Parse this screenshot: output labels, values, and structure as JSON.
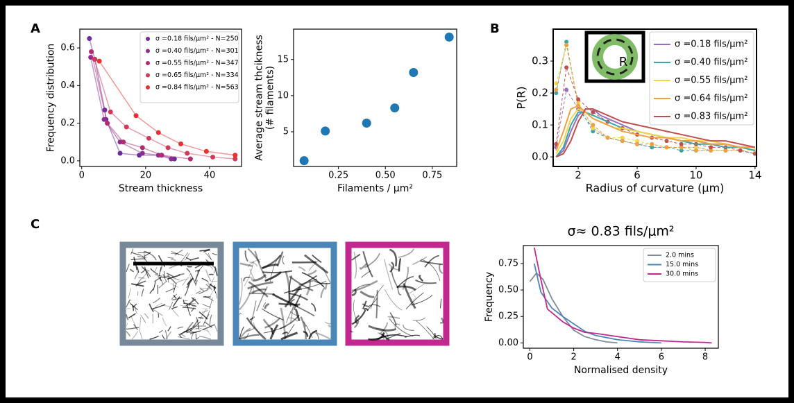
{
  "panel_labels": [
    "A",
    "B",
    "C"
  ],
  "inset_label": "R",
  "chart_data": [
    {
      "type": "line",
      "markers": true,
      "xlabel": "Stream thickness",
      "ylabel": [
        "Frequency distribution"
      ],
      "xlim": [
        -0.6,
        50
      ],
      "xticks": [
        0,
        20,
        40
      ],
      "ylim": [
        -0.03,
        0.7
      ],
      "yticks": [
        {
          "value": 0,
          "label": "0.0"
        },
        0.2,
        0.4,
        0.6
      ],
      "legend": "upper right",
      "series": [
        {
          "name": "σ =0.18 fils/μm² - N=250",
          "color": "#6a2ca0",
          "x": [
            2.4,
            4.1,
            7.2,
            7.6,
            12,
            18,
            25,
            29
          ],
          "values": [
            0.65,
            0.54,
            0.27,
            0.22,
            0.04,
            0.03,
            0.03,
            0.01
          ]
        },
        {
          "name": "σ =0.40 fils/μm² - N=301",
          "color": "#8e2c90",
          "x": [
            2.8,
            7,
            12,
            19,
            24,
            28
          ],
          "values": [
            0.55,
            0.22,
            0.1,
            0.04,
            0.03,
            0.01
          ]
        },
        {
          "name": "σ =0.55 fils/μm² - N=347",
          "color": "#b22b70",
          "x": [
            3,
            8,
            13,
            19,
            25,
            34
          ],
          "values": [
            0.58,
            0.2,
            0.1,
            0.07,
            0.03,
            0.01
          ]
        },
        {
          "name": "σ =0.65 fils/μm² - N=334",
          "color": "#d13a5a",
          "x": [
            4,
            9,
            14,
            21,
            27,
            33,
            41,
            48
          ],
          "values": [
            0.54,
            0.26,
            0.18,
            0.12,
            0.07,
            0.04,
            0.02,
            0.01
          ]
        },
        {
          "name": "σ =0.84 fils/μm² - N=563",
          "color": "#e8302e",
          "x": [
            5.5,
            17,
            24,
            31,
            39,
            48
          ],
          "values": [
            0.53,
            0.24,
            0.15,
            0.09,
            0.05,
            0.03
          ]
        }
      ]
    },
    {
      "type": "scatter",
      "xlabel": "Filaments / μm²",
      "ylabel": [
        "Average stream thcikness",
        "(# filaments)"
      ],
      "xlim": [
        0.011,
        0.88
      ],
      "xticks": [
        {
          "value": 0.25,
          "label": "0.25"
        },
        {
          "value": 0.5,
          "label": "0.50"
        },
        {
          "value": 0.75,
          "label": "0.75"
        }
      ],
      "ylim": [
        0.2,
        19.2
      ],
      "yticks": [
        5,
        10,
        15
      ],
      "series": [
        {
          "color": "#1f77b4",
          "x": [
            0.067,
            0.18,
            0.4,
            0.55,
            0.65,
            0.84
          ],
          "values": [
            1.0,
            5.1,
            6.2,
            8.3,
            13.2,
            18.1
          ]
        }
      ]
    },
    {
      "type": "line",
      "xlabel": "Radius of curvature (μm)",
      "ylabel": [
        "P(R)"
      ],
      "xlim": [
        0.3,
        14.1
      ],
      "xticks": [
        2,
        6,
        10,
        14
      ],
      "ylim": [
        -0.03,
        0.4
      ],
      "yticks": [
        {
          "value": 0,
          "label": "0.0"
        },
        0.1,
        0.2,
        0.3
      ],
      "legend": "upper right",
      "series": [
        {
          "name": "σ =0.18 fils/μm²",
          "color": "#9a6fc0",
          "x": [
            0.5,
            1,
            1.5,
            2,
            2.5,
            3,
            3.5,
            4,
            4.5,
            5,
            6,
            7,
            8,
            9,
            10,
            11,
            12,
            13,
            14
          ],
          "values": [
            0.0,
            0.02,
            0.08,
            0.13,
            0.15,
            0.15,
            0.13,
            0.12,
            0.11,
            0.1,
            0.08,
            0.07,
            0.06,
            0.05,
            0.05,
            0.04,
            0.04,
            0.03,
            0.03
          ]
        },
        {
          "name": "σ =0.40 fils/μm²",
          "color": "#3aa6a6",
          "x": [
            0.5,
            1,
            1.5,
            2,
            2.5,
            3,
            3.5,
            4,
            4.5,
            5,
            6,
            7,
            8,
            9,
            10,
            11,
            12,
            13,
            14
          ],
          "values": [
            0.0,
            0.03,
            0.1,
            0.14,
            0.14,
            0.13,
            0.12,
            0.11,
            0.1,
            0.09,
            0.08,
            0.07,
            0.06,
            0.05,
            0.04,
            0.04,
            0.03,
            0.03,
            0.02
          ]
        },
        {
          "name": "σ =0.55 fils/μm²",
          "color": "#f2d64b",
          "x": [
            0.5,
            1,
            1.5,
            2,
            2.5,
            3,
            3.5,
            4,
            4.5,
            5,
            6,
            7,
            8,
            9,
            10,
            11,
            12,
            13,
            14
          ],
          "values": [
            0.01,
            0.05,
            0.12,
            0.15,
            0.14,
            0.12,
            0.11,
            0.1,
            0.09,
            0.09,
            0.08,
            0.07,
            0.06,
            0.06,
            0.05,
            0.05,
            0.04,
            0.03,
            0.03
          ]
        },
        {
          "name": "σ =0.64 fils/μm²",
          "color": "#f0a040",
          "x": [
            0.5,
            1,
            1.5,
            2,
            2.5,
            3,
            3.5,
            4,
            4.5,
            5,
            6,
            7,
            8,
            9,
            10,
            11,
            12,
            13,
            14
          ],
          "values": [
            0.02,
            0.08,
            0.15,
            0.16,
            0.14,
            0.12,
            0.11,
            0.1,
            0.09,
            0.08,
            0.07,
            0.06,
            0.06,
            0.05,
            0.05,
            0.04,
            0.04,
            0.03,
            0.03
          ]
        },
        {
          "name": "σ =0.83 fils/μm²",
          "color": "#c0504d",
          "x": [
            0.5,
            1,
            1.5,
            2,
            2.5,
            3,
            3.5,
            4,
            4.5,
            5,
            6,
            7,
            8,
            9,
            10,
            11,
            12,
            13,
            14
          ],
          "values": [
            0.0,
            0.01,
            0.05,
            0.11,
            0.15,
            0.15,
            0.14,
            0.13,
            0.12,
            0.11,
            0.1,
            0.09,
            0.08,
            0.07,
            0.06,
            0.05,
            0.05,
            0.04,
            0.03
          ]
        }
      ],
      "marker_series": [
        {
          "color": "#9a6fc0",
          "x": [
            0.5,
            1.2,
            2,
            3,
            4,
            5,
            6,
            7,
            8,
            9,
            10,
            11,
            12,
            13,
            14
          ],
          "values": [
            0.03,
            0.21,
            0.15,
            0.09,
            0.06,
            0.05,
            0.04,
            0.03,
            0.03,
            0.03,
            0.03,
            0.02,
            0.02,
            0.02,
            0.01
          ]
        },
        {
          "color": "#3aa6a6",
          "x": [
            0.5,
            1.2,
            2,
            3,
            4,
            5,
            6,
            7,
            8,
            9,
            10,
            11,
            12,
            13,
            14
          ],
          "values": [
            0.2,
            0.36,
            0.16,
            0.08,
            0.06,
            0.05,
            0.04,
            0.03,
            0.03,
            0.02,
            0.02,
            0.02,
            0.02,
            0.02,
            0.01
          ]
        },
        {
          "color": "#f2d64b",
          "x": [
            0.5,
            1.2,
            2,
            3,
            4,
            5,
            6,
            7,
            8,
            9,
            10,
            11,
            12,
            13,
            14
          ],
          "values": [
            0.23,
            0.35,
            0.17,
            0.09,
            0.06,
            0.06,
            0.05,
            0.04,
            0.03,
            0.03,
            0.03,
            0.02,
            0.02,
            0.02,
            0.02
          ]
        },
        {
          "color": "#f0a040",
          "x": [
            0.5,
            1.2,
            2,
            3,
            4,
            5,
            6,
            7,
            8,
            9,
            10,
            11,
            12,
            13,
            14
          ],
          "values": [
            0.21,
            0.35,
            0.16,
            0.1,
            0.06,
            0.05,
            0.04,
            0.04,
            0.03,
            0.03,
            0.02,
            0.02,
            0.02,
            0.02,
            0.01
          ]
        },
        {
          "color": "#c0504d",
          "x": [
            0.5,
            1.2,
            2,
            3,
            4,
            5,
            6,
            7,
            8,
            9,
            10,
            11,
            12,
            13,
            14
          ],
          "values": [
            0.04,
            0.28,
            0.18,
            0.14,
            0.11,
            0.09,
            0.07,
            0.06,
            0.05,
            0.04,
            0.04,
            0.03,
            0.03,
            0.02,
            0.01
          ]
        }
      ]
    },
    {
      "type": "line",
      "title": "σ≈ 0.83 fils/μm²",
      "xlabel": "Normalised density",
      "ylabel": [
        "Frequency"
      ],
      "xlim": [
        -0.3,
        8.6
      ],
      "xticks": [
        0,
        2,
        4,
        6,
        8
      ],
      "ylim": [
        -0.05,
        0.92
      ],
      "yticks": [
        {
          "value": 0,
          "label": "0.00"
        },
        {
          "value": 0.25,
          "label": "0.25"
        },
        {
          "value": 0.5,
          "label": "0.50"
        },
        {
          "value": 0.75,
          "label": "0.75"
        }
      ],
      "legend": "upper right",
      "series": [
        {
          "name": "2.0 mins",
          "color": "#7f8c99",
          "x": [
            0,
            0.3,
            0.6,
            1,
            1.5,
            2,
            2.5,
            3,
            3.5,
            4
          ],
          "values": [
            0.58,
            0.66,
            0.6,
            0.42,
            0.25,
            0.12,
            0.06,
            0.03,
            0.01,
            0.0
          ]
        },
        {
          "name": "15.0 mins",
          "color": "#4a86b8",
          "x": [
            0.2,
            0.5,
            1,
            1.5,
            2,
            2.5,
            3,
            3.5,
            4,
            5,
            6
          ],
          "values": [
            0.75,
            0.48,
            0.33,
            0.25,
            0.18,
            0.11,
            0.07,
            0.05,
            0.03,
            0.01,
            0.0
          ]
        },
        {
          "name": "30.0 mins",
          "color": "#c2288f",
          "x": [
            0.2,
            0.5,
            0.8,
            1.5,
            2,
            2.5,
            3,
            4,
            5,
            6,
            7,
            8,
            8.3
          ],
          "values": [
            0.9,
            0.6,
            0.32,
            0.2,
            0.14,
            0.1,
            0.09,
            0.06,
            0.03,
            0.02,
            0.01,
            0.005,
            0.0
          ]
        }
      ]
    }
  ]
}
